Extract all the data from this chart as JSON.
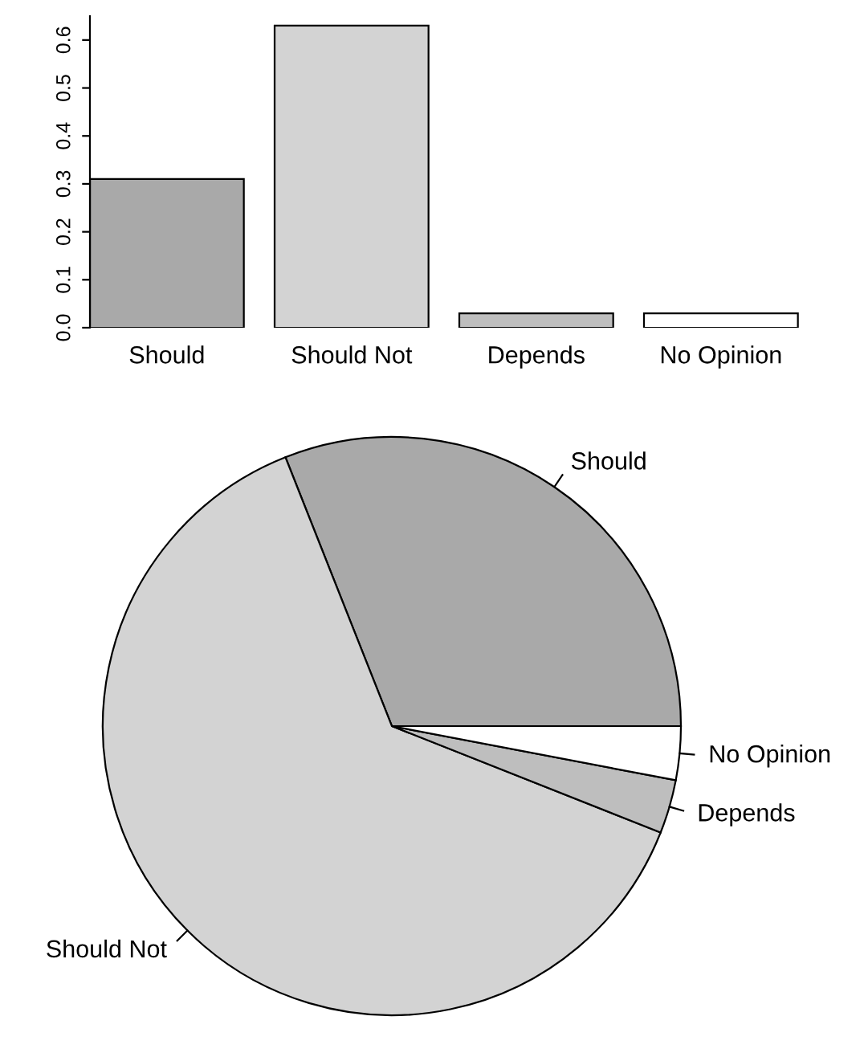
{
  "chart_data": [
    {
      "type": "bar",
      "categories": [
        "Should",
        "Should Not",
        "Depends",
        "No Opinion"
      ],
      "values": [
        0.31,
        0.63,
        0.03,
        0.03
      ],
      "colors": [
        "#a9a9a9",
        "#d3d3d3",
        "#bebebe",
        "#ffffff"
      ],
      "ylim": [
        0,
        0.65
      ],
      "yticks": [
        {
          "value": 0,
          "label": "0.0"
        },
        0.1,
        0.2,
        0.3,
        0.4,
        0.5,
        0.6
      ],
      "grid": false
    },
    {
      "type": "pie",
      "categories": [
        "Should",
        "Should Not",
        "Depends",
        "No Opinion"
      ],
      "values": [
        31,
        63,
        3,
        3
      ],
      "colors": [
        "#a9a9a9",
        "#d3d3d3",
        "#bebebe",
        "#ffffff"
      ]
    }
  ]
}
